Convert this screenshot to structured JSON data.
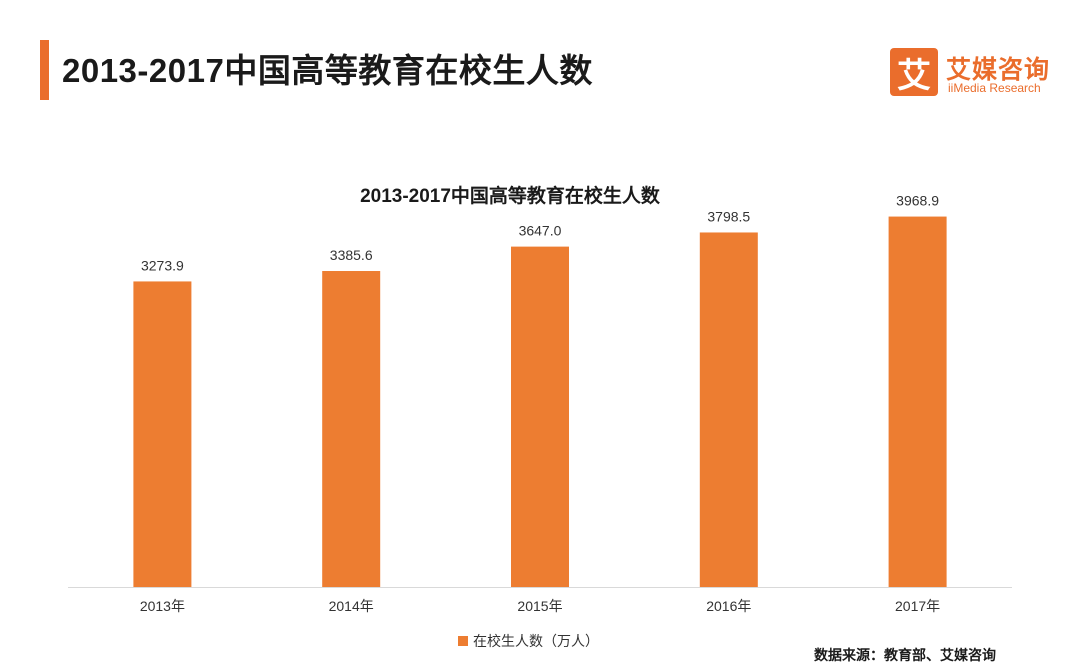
{
  "header": {
    "title": "2013-2017中国高等教育在校生人数"
  },
  "logo": {
    "mark": "艾",
    "name_cn": "艾媒咨询",
    "name_en": "iiMedia Research"
  },
  "colors": {
    "accent": "#ea6d2c",
    "bar": "#ed7d31",
    "axis": "#d9d9d9"
  },
  "chart_data": {
    "type": "bar",
    "title": "2013-2017中国高等教育在校生人数",
    "categories": [
      "2013年",
      "2014年",
      "2015年",
      "2016年",
      "2017年"
    ],
    "series": [
      {
        "name": "在校生人数（万人）",
        "values": [
          3273.9,
          3385.6,
          3647.0,
          3798.5,
          3968.9
        ]
      }
    ],
    "value_labels": [
      "3273.9",
      "3385.6",
      "3647.0",
      "3798.5",
      "3968.9"
    ],
    "ylim": [
      0,
      4500
    ],
    "grid": false,
    "legend_position": "bottom"
  },
  "footer": {
    "source": "数据来源：教育部、艾媒咨询"
  }
}
